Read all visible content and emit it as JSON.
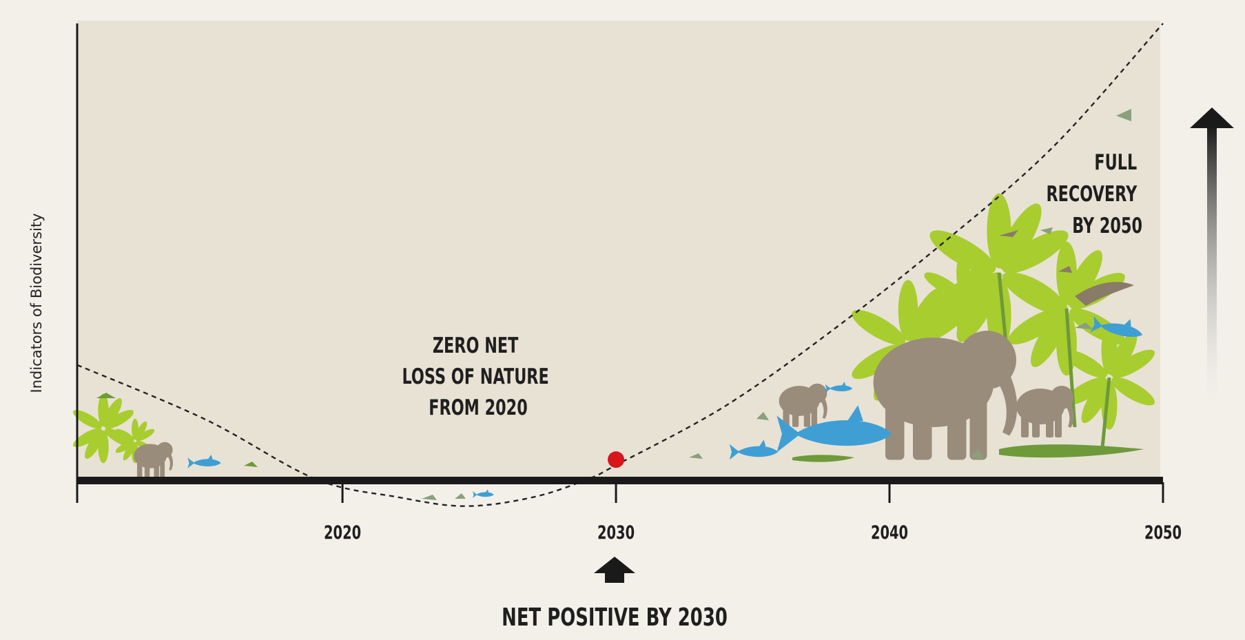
{
  "chart_data": {
    "type": "line",
    "ylabel": "Indicators of Biodiversity",
    "xlabel": "",
    "title": "",
    "x_ticks": [
      2020,
      2030,
      2040,
      2050
    ],
    "xlim": [
      2010.3,
      2050
    ],
    "curve": {
      "style": "dashed",
      "x": [
        2010.3,
        2015,
        2019,
        2022,
        2024.5,
        2027,
        2029,
        2030,
        2034,
        2038,
        2042,
        2046,
        2050
      ],
      "y": [
        0.25,
        0.13,
        0.0,
        -0.04,
        -0.06,
        -0.04,
        0.0,
        0.03,
        0.16,
        0.33,
        0.52,
        0.73,
        1.0
      ]
    },
    "marker": {
      "x": 2030,
      "y": 0.03,
      "color": "#d7161d"
    },
    "annotations": {
      "zero_net": [
        "ZERO NET",
        "LOSS OF NATURE",
        "FROM 2020"
      ],
      "net_positive": "NET POSITIVE BY 2030",
      "full_recovery": [
        "FULL",
        "RECOVERY",
        "BY 2050"
      ]
    },
    "colors": {
      "plot_bg": "#e8e2d5",
      "leaf_green": "#a8cd2f",
      "animal_grey": "#9a8c7b",
      "fish_blue": "#3f9fd4",
      "croc_green": "#6e9a3a",
      "axis": "#1a1a1a"
    }
  }
}
